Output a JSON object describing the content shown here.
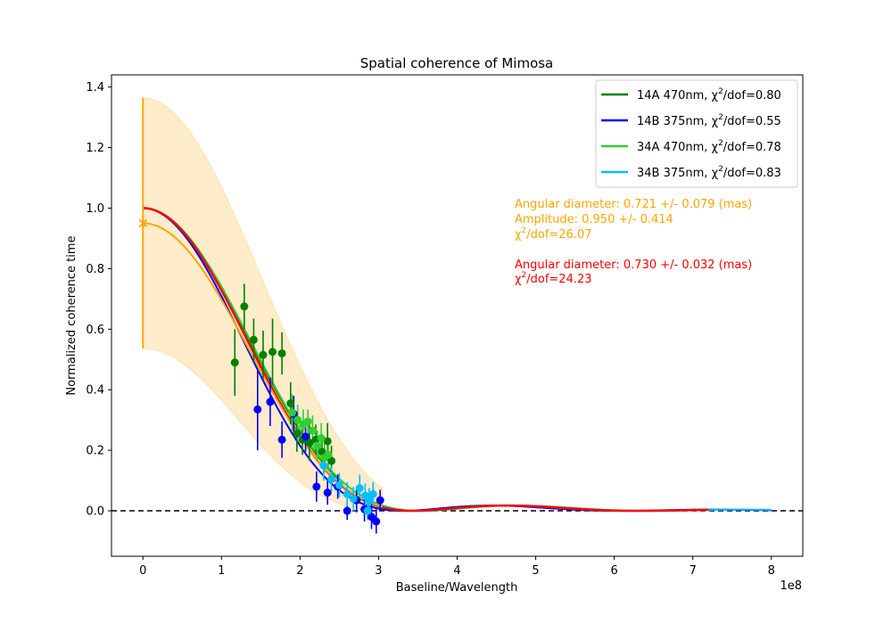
{
  "chart_data": {
    "type": "scatter",
    "title": "Spatial coherence of Mimosa",
    "xlabel": "Baseline/Wavelength",
    "ylabel": "Normalized coherence time",
    "x_offset_label": "1e8",
    "xlim": [
      -0.4,
      8.4
    ],
    "ylim": [
      -0.15,
      1.44
    ],
    "x_ticks": [
      0,
      1,
      2,
      3,
      4,
      5,
      6,
      7,
      8
    ],
    "y_ticks": [
      0.0,
      0.2,
      0.4,
      0.6,
      0.8,
      1.0,
      1.2,
      1.4
    ],
    "y_tick_labels": [
      "0.0",
      "0.2",
      "0.4",
      "0.6",
      "0.8",
      "1.0",
      "1.2",
      "1.4"
    ],
    "zero_line": true,
    "legend_position": "top-right",
    "series": [
      {
        "name": "14A 470nm, χ²/dof=0.80",
        "legend_main": "14A 470nm, χ",
        "legend_tail": "/dof=0.80",
        "color": "#008000",
        "diameter": 0.715,
        "fit_xmax": 2.5,
        "points": [
          {
            "x": 1.17,
            "y": 0.49,
            "err": 0.11
          },
          {
            "x": 1.29,
            "y": 0.675,
            "err": 0.075
          },
          {
            "x": 1.41,
            "y": 0.565,
            "err": 0.07
          },
          {
            "x": 1.53,
            "y": 0.515,
            "err": 0.08
          },
          {
            "x": 1.65,
            "y": 0.525,
            "err": 0.11
          },
          {
            "x": 1.77,
            "y": 0.52,
            "err": 0.07
          },
          {
            "x": 1.88,
            "y": 0.355,
            "err": 0.07
          },
          {
            "x": 1.96,
            "y": 0.255,
            "err": 0.06
          },
          {
            "x": 2.03,
            "y": 0.235,
            "err": 0.05
          },
          {
            "x": 2.12,
            "y": 0.225,
            "err": 0.06
          },
          {
            "x": 2.2,
            "y": 0.235,
            "err": 0.05
          },
          {
            "x": 2.28,
            "y": 0.195,
            "err": 0.05
          },
          {
            "x": 2.35,
            "y": 0.23,
            "err": 0.06
          },
          {
            "x": 2.4,
            "y": 0.165,
            "err": 0.05
          }
        ]
      },
      {
        "name": "14B 375nm, χ²/dof=0.55",
        "legend_main": "14B 375nm, χ",
        "legend_tail": "/dof=0.55",
        "color": "#0000ff",
        "diameter": 0.76,
        "fit_xmax": 8.0,
        "points": [
          {
            "x": 1.46,
            "y": 0.335,
            "err": 0.135
          },
          {
            "x": 1.62,
            "y": 0.36,
            "err": 0.08
          },
          {
            "x": 1.77,
            "y": 0.235,
            "err": 0.06
          },
          {
            "x": 1.92,
            "y": 0.32,
            "err": 0.06
          },
          {
            "x": 2.07,
            "y": 0.245,
            "err": 0.05
          },
          {
            "x": 2.21,
            "y": 0.08,
            "err": 0.05
          },
          {
            "x": 2.35,
            "y": 0.06,
            "err": 0.04
          },
          {
            "x": 2.48,
            "y": 0.08,
            "err": 0.04
          },
          {
            "x": 2.6,
            "y": 0.0,
            "err": 0.03
          },
          {
            "x": 2.72,
            "y": 0.035,
            "err": 0.04
          },
          {
            "x": 2.82,
            "y": 0.005,
            "err": 0.04
          },
          {
            "x": 2.91,
            "y": -0.02,
            "err": 0.04
          },
          {
            "x": 2.97,
            "y": -0.035,
            "err": 0.04
          },
          {
            "x": 3.02,
            "y": 0.035,
            "err": 0.035
          }
        ]
      },
      {
        "name": "34A 470nm, χ²/dof=0.78",
        "legend_main": "34A 470nm, χ",
        "legend_tail": "/dof=0.78",
        "color": "#32cd32",
        "diameter": 0.71,
        "fit_xmax": 7.0,
        "points": [
          {
            "x": 1.9,
            "y": 0.325,
            "err": 0.06
          },
          {
            "x": 1.97,
            "y": 0.3,
            "err": 0.05
          },
          {
            "x": 2.04,
            "y": 0.285,
            "err": 0.05
          },
          {
            "x": 2.1,
            "y": 0.295,
            "err": 0.04
          },
          {
            "x": 2.16,
            "y": 0.265,
            "err": 0.05
          },
          {
            "x": 2.22,
            "y": 0.215,
            "err": 0.05
          },
          {
            "x": 2.27,
            "y": 0.24,
            "err": 0.05
          },
          {
            "x": 2.31,
            "y": 0.175,
            "err": 0.05
          },
          {
            "x": 2.36,
            "y": 0.185,
            "err": 0.05
          }
        ]
      },
      {
        "name": "34B 375nm, χ²/dof=0.83",
        "legend_main": "34B 375nm, χ",
        "legend_tail": "/dof=0.83",
        "color": "#00bfff",
        "diameter": 0.73,
        "fit_xmax": 8.0,
        "points": [
          {
            "x": 2.3,
            "y": 0.15,
            "err": 0.05
          },
          {
            "x": 2.4,
            "y": 0.105,
            "err": 0.04
          },
          {
            "x": 2.5,
            "y": 0.085,
            "err": 0.04
          },
          {
            "x": 2.6,
            "y": 0.055,
            "err": 0.04
          },
          {
            "x": 2.68,
            "y": 0.04,
            "err": 0.04
          },
          {
            "x": 2.76,
            "y": 0.075,
            "err": 0.045
          },
          {
            "x": 2.83,
            "y": 0.05,
            "err": 0.04
          },
          {
            "x": 2.88,
            "y": 0.035,
            "err": 0.04
          },
          {
            "x": 2.93,
            "y": 0.055,
            "err": 0.04
          },
          {
            "x": 2.86,
            "y": 0.0,
            "err": 0.03
          }
        ]
      }
    ],
    "combined_fit": {
      "color": "#ff0000",
      "diameter": 0.73,
      "amplitude": 1.0,
      "fit_xmax": 7.2
    },
    "amplitude_fit": {
      "color": "#ffa500",
      "diameter": 0.721,
      "amplitude": 0.95,
      "amplitude_err": 0.414,
      "band_color": "#ffdfa6",
      "fit_xmax": 3.05
    }
  },
  "annotations": {
    "orange_line1": "Angular diameter: 0.721 +/- 0.079 (mas)",
    "orange_line2": "Amplitude: 0.950 +/- 0.414",
    "orange_chi_main": "χ",
    "orange_chi_tail": "/dof=26.07",
    "red_line1": "Angular diameter: 0.730 +/- 0.032 (mas)",
    "red_chi_main": "χ",
    "red_chi_tail": "/dof=24.23",
    "superscript": "2",
    "orange_color": "#ffa500",
    "red_color": "#ff0000"
  }
}
